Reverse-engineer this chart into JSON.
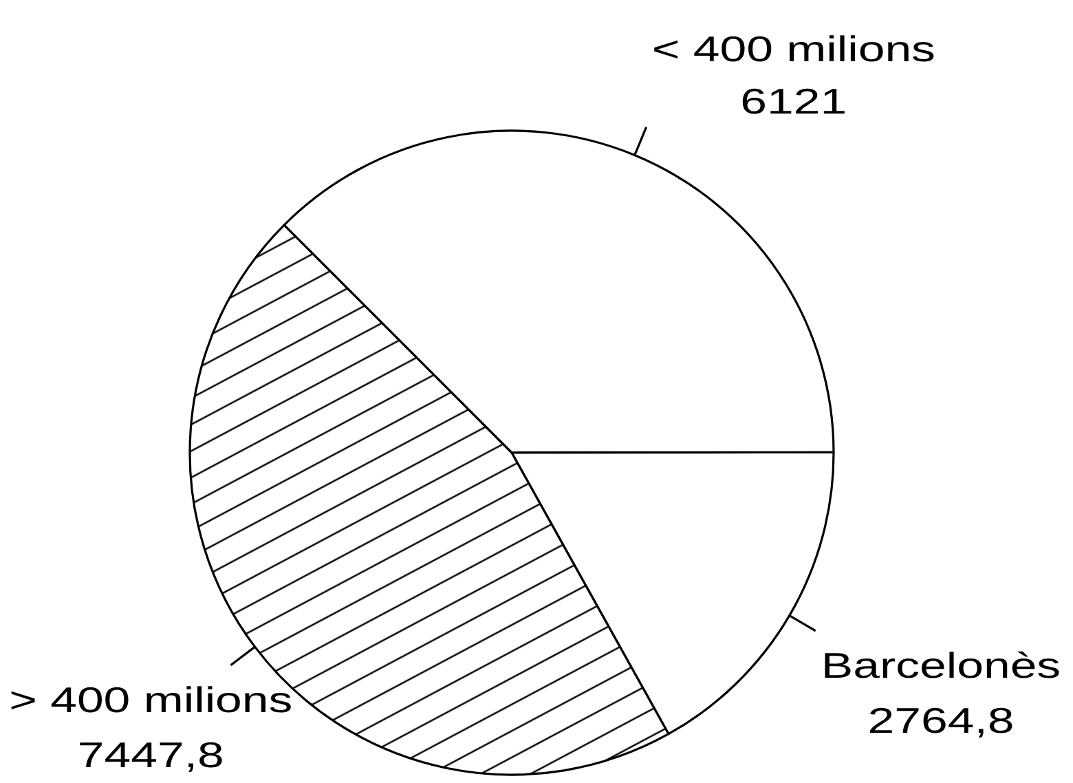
{
  "chart_data": {
    "type": "pie",
    "categories": [
      "< 400 milions",
      "Barcelonès",
      "> 400 milions"
    ],
    "values": [
      6121,
      2764.8,
      7447.8
    ],
    "colors": [
      "#ffffff",
      "#ffffff",
      "#000000"
    ],
    "value_labels": [
      "6121",
      "2764,8",
      "7447,8"
    ]
  }
}
